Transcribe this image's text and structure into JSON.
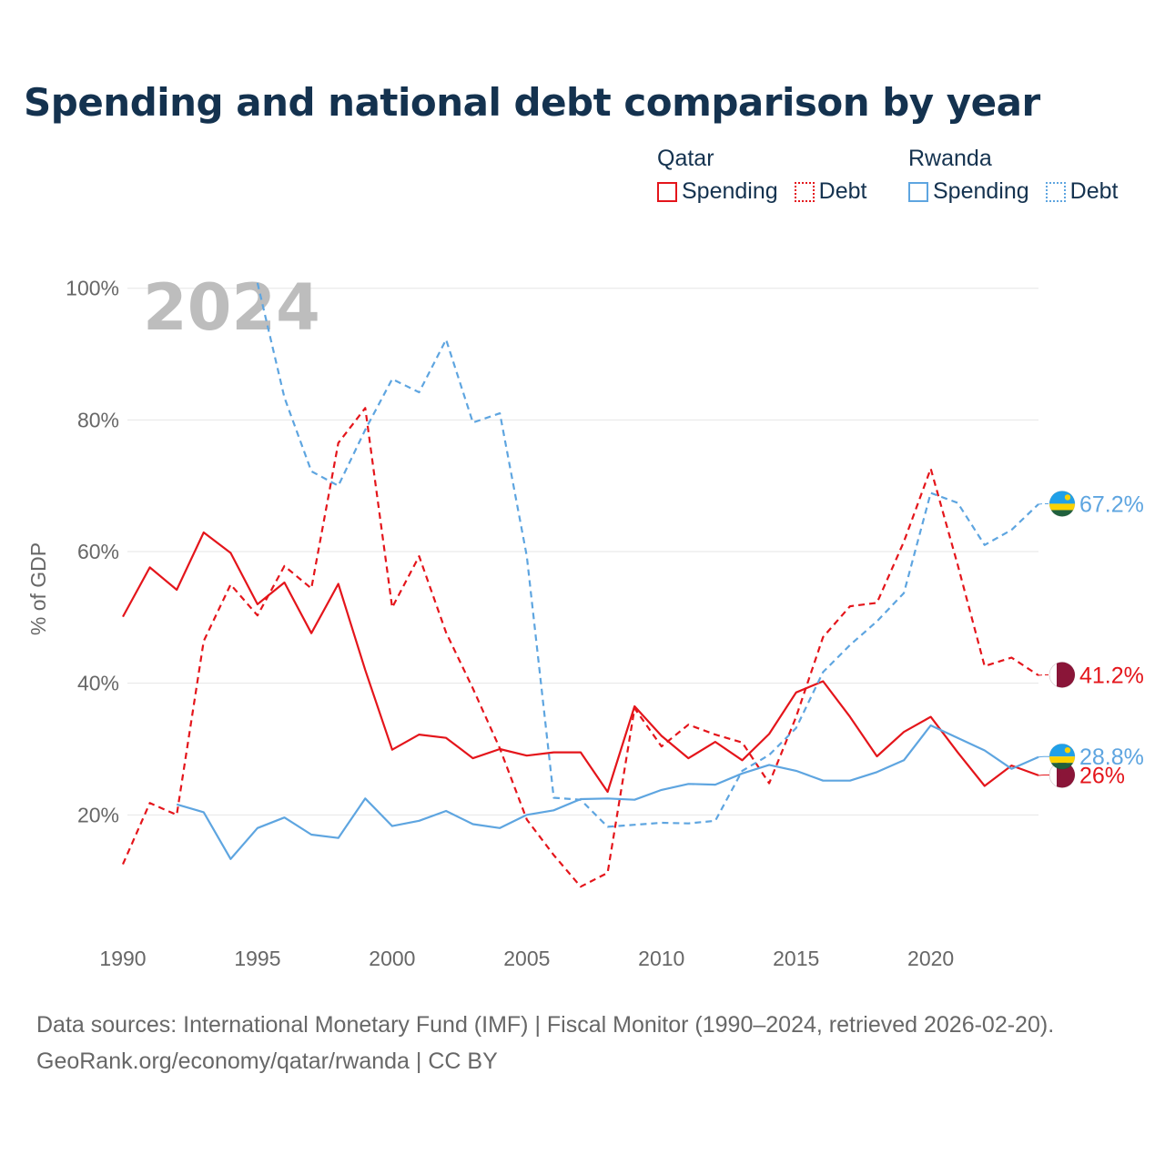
{
  "title": "Spending and national debt comparison by year",
  "legend": {
    "groups": [
      {
        "name": "Qatar",
        "color": "#e4151b",
        "items": [
          {
            "label": "Spending",
            "style": "solid"
          },
          {
            "label": "Debt",
            "style": "dotted"
          }
        ]
      },
      {
        "name": "Rwanda",
        "color": "#5ea5e0",
        "items": [
          {
            "label": "Spending",
            "style": "solid"
          },
          {
            "label": "Debt",
            "style": "dotted"
          }
        ]
      }
    ]
  },
  "year_watermark": "2024",
  "chart_data": {
    "type": "line",
    "ylabel": "% of GDP",
    "ylim": [
      0,
      100
    ],
    "xlim": [
      1990,
      2024
    ],
    "x_ticks": [
      1990,
      1995,
      2000,
      2005,
      2010,
      2015,
      2020
    ],
    "x_tick_labels": [
      "1990",
      "1995",
      "2000",
      "2005",
      "2010",
      "2015",
      "2020"
    ],
    "y_ticks": [
      20,
      40,
      60,
      80,
      100
    ],
    "y_tick_labels": [
      "20%",
      "40%",
      "60%",
      "80%",
      "100%"
    ],
    "grid": true,
    "series": [
      {
        "name": "Qatar Spending",
        "country": "Qatar",
        "flag": "qatar-flag",
        "color": "#e4151b",
        "dash": "solid",
        "x": [
          1990,
          1991,
          1992,
          1993,
          1994,
          1995,
          1996,
          1997,
          1998,
          1999,
          2000,
          2001,
          2002,
          2003,
          2004,
          2005,
          2006,
          2007,
          2008,
          2009,
          2010,
          2011,
          2012,
          2013,
          2014,
          2015,
          2016,
          2017,
          2018,
          2019,
          2020,
          2021,
          2022,
          2023,
          2024
        ],
        "values": [
          50.1,
          57.6,
          54.2,
          62.9,
          59.8,
          52.0,
          55.3,
          47.6,
          55.1,
          42.0,
          29.9,
          32.2,
          31.7,
          28.6,
          30.0,
          29.0,
          29.5,
          29.5,
          23.5,
          36.5,
          32.0,
          28.6,
          31.1,
          28.3,
          32.3,
          38.6,
          40.3,
          34.9,
          28.9,
          32.6,
          34.9,
          29.5,
          24.4,
          27.5,
          26.0
        ],
        "end_label": "26%"
      },
      {
        "name": "Qatar Debt",
        "country": "Qatar",
        "flag": "qatar-flag",
        "color": "#e4151b",
        "dash": "dashed",
        "x": [
          1990,
          1991,
          1992,
          1993,
          1994,
          1995,
          1996,
          1997,
          1998,
          1999,
          2000,
          2001,
          2002,
          2003,
          2004,
          2005,
          2006,
          2007,
          2008,
          2009,
          2010,
          2011,
          2012,
          2013,
          2014,
          2015,
          2016,
          2017,
          2018,
          2019,
          2020,
          2021,
          2022,
          2023,
          2024
        ],
        "values": [
          12.5,
          21.8,
          20.0,
          46.4,
          55.0,
          50.3,
          57.8,
          54.4,
          76.5,
          81.8,
          51.5,
          59.3,
          47.7,
          39.2,
          30.1,
          19.3,
          13.9,
          9.1,
          11.2,
          36.2,
          30.4,
          33.7,
          32.2,
          31.0,
          24.8,
          34.9,
          47.0,
          51.7,
          52.2,
          61.5,
          72.6,
          58.0,
          42.6,
          43.9,
          41.2
        ],
        "end_label": "41.2%"
      },
      {
        "name": "Rwanda Spending",
        "country": "Rwanda",
        "flag": "rwanda-flag",
        "color": "#5ea5e0",
        "dash": "solid",
        "x": [
          1992,
          1993,
          1994,
          1995,
          1996,
          1997,
          1998,
          1999,
          2000,
          2001,
          2002,
          2003,
          2004,
          2005,
          2006,
          2007,
          2008,
          2009,
          2010,
          2011,
          2012,
          2013,
          2014,
          2015,
          2016,
          2017,
          2018,
          2019,
          2020,
          2021,
          2022,
          2023,
          2024
        ],
        "values": [
          21.6,
          20.4,
          13.3,
          18.0,
          19.6,
          17.0,
          16.5,
          22.5,
          18.3,
          19.1,
          20.6,
          18.6,
          18.0,
          20.0,
          20.7,
          22.4,
          22.5,
          22.3,
          23.8,
          24.7,
          24.6,
          26.3,
          27.6,
          26.7,
          25.2,
          25.2,
          26.5,
          28.3,
          33.6,
          31.7,
          29.8,
          27.0,
          28.8
        ],
        "end_label": "28.8%"
      },
      {
        "name": "Rwanda Debt",
        "country": "Rwanda",
        "flag": "rwanda-flag",
        "color": "#5ea5e0",
        "dash": "dashed",
        "x": [
          1995,
          1996,
          1997,
          1998,
          1999,
          2000,
          2001,
          2002,
          2003,
          2004,
          2005,
          2006,
          2007,
          2008,
          2009,
          2010,
          2011,
          2012,
          2013,
          2014,
          2015,
          2016,
          2017,
          2018,
          2019,
          2020,
          2021,
          2022,
          2023,
          2024
        ],
        "values": [
          100.8,
          83.4,
          72.2,
          70.0,
          78.5,
          86.2,
          84.2,
          92.2,
          79.6,
          81.0,
          59.3,
          22.6,
          22.3,
          18.2,
          18.5,
          18.8,
          18.7,
          19.1,
          26.7,
          29.1,
          33.2,
          41.7,
          45.8,
          49.4,
          53.7,
          68.9,
          67.4,
          61.0,
          63.3,
          67.2
        ],
        "end_label": "67.2%"
      }
    ]
  },
  "footer": {
    "line1": "Data sources: International Monetary Fund (IMF) | Fiscal Monitor (1990–2024, retrieved 2026-02-20).",
    "line2": "GeoRank.org/economy/qatar/rwanda | CC BY"
  }
}
